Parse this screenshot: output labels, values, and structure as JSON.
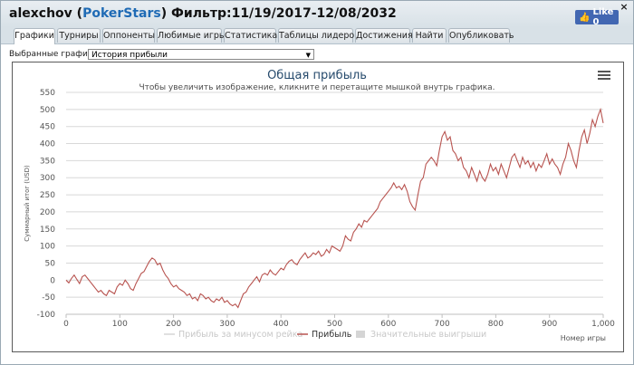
{
  "window": {
    "player": "alexchov",
    "site": "PokerStars",
    "filter_label": "Фильтр:",
    "filter_range": "11/19/2017-12/08/2032",
    "close_glyph": "×",
    "like_label": "Like 0"
  },
  "tabs": [
    {
      "label": "Графики",
      "active": true
    },
    {
      "label": "Турниры"
    },
    {
      "label": "Оппоненты"
    },
    {
      "label": "Любимые игры"
    },
    {
      "label": "Статистика"
    },
    {
      "label": "Таблицы лидеров"
    },
    {
      "label": "Достижения"
    },
    {
      "label": "Найти"
    },
    {
      "label": "Опубликовать"
    }
  ],
  "selector": {
    "label": "Выбранные графики:",
    "value": "История прибыли",
    "arrow": "▼"
  },
  "chart_data": {
    "type": "line",
    "title": "Общая прибыль",
    "subtitle": "Чтобы увеличить изображение, кликните и перетащите мышкой внутрь графика.",
    "ylabel": "Суммарный итог (USD)",
    "xlabel": "Номер игры",
    "xlim": [
      0,
      1000
    ],
    "ylim": [
      -100,
      550
    ],
    "xticks": [
      0,
      100,
      200,
      300,
      400,
      500,
      600,
      700,
      800,
      900,
      "1,000"
    ],
    "yticks": [
      -100,
      -50,
      0,
      50,
      100,
      150,
      200,
      250,
      300,
      350,
      400,
      450,
      500,
      550
    ],
    "grid": true,
    "legend_position": "bottom",
    "series": [
      {
        "name": "Прибыль за минусом рейка",
        "color": "#d5d5d5",
        "visible": false
      },
      {
        "name": "Прибыль",
        "color": "#b85450",
        "visible": true,
        "points": [
          [
            0,
            0
          ],
          [
            5,
            -8
          ],
          [
            10,
            5
          ],
          [
            15,
            15
          ],
          [
            20,
            2
          ],
          [
            25,
            -10
          ],
          [
            30,
            10
          ],
          [
            35,
            15
          ],
          [
            40,
            5
          ],
          [
            45,
            -5
          ],
          [
            50,
            -15
          ],
          [
            55,
            -25
          ],
          [
            60,
            -35
          ],
          [
            65,
            -30
          ],
          [
            70,
            -40
          ],
          [
            75,
            -45
          ],
          [
            80,
            -30
          ],
          [
            85,
            -35
          ],
          [
            90,
            -40
          ],
          [
            95,
            -20
          ],
          [
            100,
            -10
          ],
          [
            105,
            -15
          ],
          [
            110,
            0
          ],
          [
            115,
            -10
          ],
          [
            120,
            -25
          ],
          [
            125,
            -30
          ],
          [
            130,
            -10
          ],
          [
            135,
            5
          ],
          [
            140,
            20
          ],
          [
            145,
            25
          ],
          [
            150,
            40
          ],
          [
            155,
            55
          ],
          [
            160,
            65
          ],
          [
            165,
            60
          ],
          [
            170,
            45
          ],
          [
            175,
            50
          ],
          [
            180,
            30
          ],
          [
            185,
            15
          ],
          [
            190,
            5
          ],
          [
            195,
            -10
          ],
          [
            200,
            -20
          ],
          [
            205,
            -15
          ],
          [
            210,
            -25
          ],
          [
            215,
            -30
          ],
          [
            220,
            -35
          ],
          [
            225,
            -45
          ],
          [
            230,
            -40
          ],
          [
            235,
            -55
          ],
          [
            240,
            -50
          ],
          [
            245,
            -60
          ],
          [
            250,
            -40
          ],
          [
            255,
            -45
          ],
          [
            260,
            -55
          ],
          [
            265,
            -50
          ],
          [
            270,
            -60
          ],
          [
            275,
            -65
          ],
          [
            280,
            -55
          ],
          [
            285,
            -60
          ],
          [
            290,
            -50
          ],
          [
            295,
            -65
          ],
          [
            300,
            -60
          ],
          [
            305,
            -70
          ],
          [
            310,
            -75
          ],
          [
            315,
            -70
          ],
          [
            320,
            -80
          ],
          [
            325,
            -60
          ],
          [
            330,
            -40
          ],
          [
            335,
            -35
          ],
          [
            340,
            -20
          ],
          [
            345,
            -10
          ],
          [
            350,
            0
          ],
          [
            355,
            10
          ],
          [
            360,
            -5
          ],
          [
            365,
            15
          ],
          [
            370,
            20
          ],
          [
            375,
            15
          ],
          [
            380,
            30
          ],
          [
            385,
            20
          ],
          [
            390,
            15
          ],
          [
            395,
            25
          ],
          [
            400,
            35
          ],
          [
            405,
            30
          ],
          [
            410,
            45
          ],
          [
            415,
            55
          ],
          [
            420,
            60
          ],
          [
            425,
            50
          ],
          [
            430,
            45
          ],
          [
            435,
            60
          ],
          [
            440,
            70
          ],
          [
            445,
            80
          ],
          [
            450,
            65
          ],
          [
            455,
            70
          ],
          [
            460,
            80
          ],
          [
            465,
            75
          ],
          [
            470,
            85
          ],
          [
            475,
            70
          ],
          [
            480,
            75
          ],
          [
            485,
            90
          ],
          [
            490,
            80
          ],
          [
            495,
            100
          ],
          [
            500,
            95
          ],
          [
            505,
            90
          ],
          [
            510,
            85
          ],
          [
            515,
            100
          ],
          [
            520,
            130
          ],
          [
            525,
            120
          ],
          [
            530,
            115
          ],
          [
            535,
            140
          ],
          [
            540,
            150
          ],
          [
            545,
            165
          ],
          [
            550,
            155
          ],
          [
            555,
            175
          ],
          [
            560,
            170
          ],
          [
            565,
            180
          ],
          [
            570,
            190
          ],
          [
            575,
            200
          ],
          [
            580,
            210
          ],
          [
            585,
            230
          ],
          [
            590,
            240
          ],
          [
            595,
            250
          ],
          [
            600,
            260
          ],
          [
            605,
            270
          ],
          [
            610,
            285
          ],
          [
            615,
            270
          ],
          [
            620,
            275
          ],
          [
            625,
            265
          ],
          [
            630,
            280
          ],
          [
            635,
            260
          ],
          [
            640,
            230
          ],
          [
            645,
            215
          ],
          [
            650,
            205
          ],
          [
            655,
            250
          ],
          [
            660,
            290
          ],
          [
            665,
            300
          ],
          [
            670,
            340
          ],
          [
            675,
            350
          ],
          [
            680,
            360
          ],
          [
            685,
            350
          ],
          [
            690,
            335
          ],
          [
            695,
            380
          ],
          [
            700,
            420
          ],
          [
            705,
            435
          ],
          [
            710,
            410
          ],
          [
            715,
            420
          ],
          [
            720,
            380
          ],
          [
            725,
            370
          ],
          [
            730,
            350
          ],
          [
            735,
            360
          ],
          [
            740,
            330
          ],
          [
            745,
            320
          ],
          [
            750,
            300
          ],
          [
            755,
            330
          ],
          [
            760,
            310
          ],
          [
            765,
            290
          ],
          [
            770,
            320
          ],
          [
            775,
            300
          ],
          [
            780,
            290
          ],
          [
            785,
            310
          ],
          [
            790,
            340
          ],
          [
            795,
            320
          ],
          [
            800,
            330
          ],
          [
            805,
            310
          ],
          [
            810,
            340
          ],
          [
            815,
            320
          ],
          [
            820,
            300
          ],
          [
            825,
            330
          ],
          [
            830,
            360
          ],
          [
            835,
            370
          ],
          [
            840,
            350
          ],
          [
            845,
            330
          ],
          [
            850,
            360
          ],
          [
            855,
            340
          ],
          [
            860,
            350
          ],
          [
            865,
            330
          ],
          [
            870,
            345
          ],
          [
            875,
            320
          ],
          [
            880,
            340
          ],
          [
            885,
            330
          ],
          [
            890,
            350
          ],
          [
            895,
            370
          ],
          [
            900,
            340
          ],
          [
            905,
            355
          ],
          [
            910,
            340
          ],
          [
            915,
            330
          ],
          [
            920,
            310
          ],
          [
            925,
            340
          ],
          [
            930,
            360
          ],
          [
            935,
            400
          ],
          [
            940,
            380
          ],
          [
            945,
            350
          ],
          [
            950,
            330
          ],
          [
            955,
            380
          ],
          [
            960,
            420
          ],
          [
            965,
            440
          ],
          [
            970,
            400
          ],
          [
            975,
            430
          ],
          [
            980,
            470
          ],
          [
            985,
            450
          ],
          [
            990,
            480
          ],
          [
            995,
            500
          ],
          [
            1000,
            460
          ]
        ]
      },
      {
        "name": "Значительные выигрыши",
        "color": "#d5d5d5",
        "visible": false
      }
    ]
  }
}
